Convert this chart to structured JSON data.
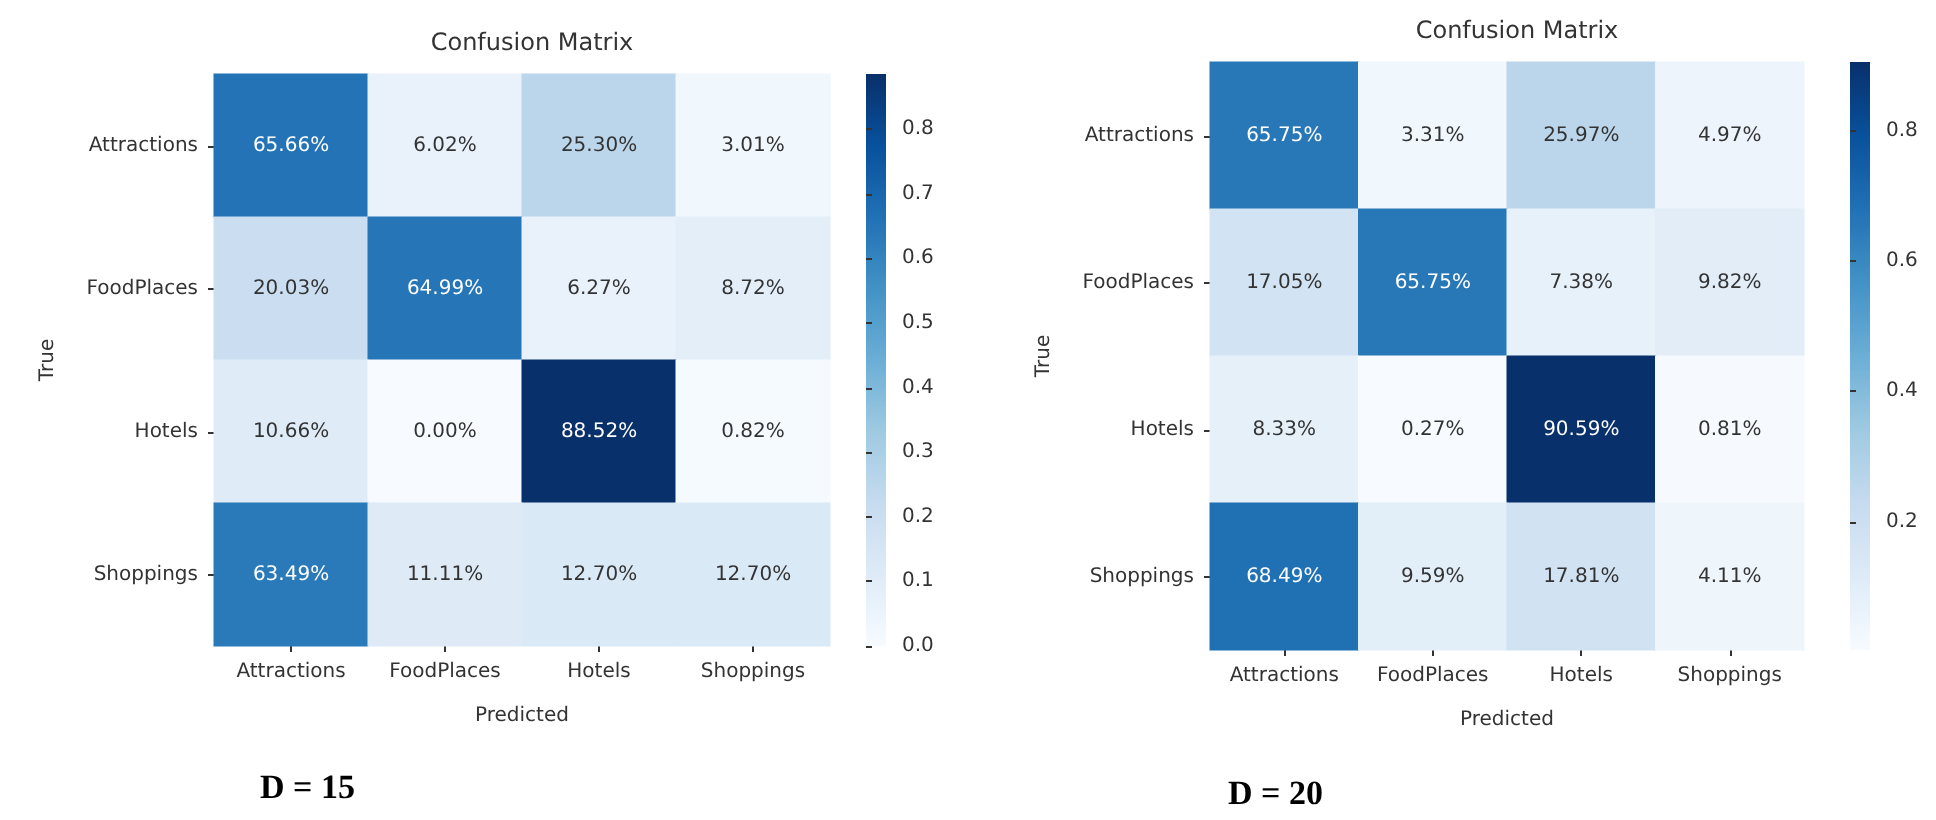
{
  "chart_data": [
    {
      "type": "heatmap",
      "title": "Confusion Matrix",
      "xlabel": "Predicted",
      "ylabel": "True",
      "categories": [
        "Attractions",
        "FoodPlaces",
        "Hotels",
        "Shoppings"
      ],
      "y_categories": [
        "Attractions",
        "FoodPlaces",
        "Hotels",
        "Shoppings"
      ],
      "cells": [
        [
          0.6566,
          0.0602,
          0.253,
          0.0301
        ],
        [
          0.2003,
          0.6499,
          0.0627,
          0.0872
        ],
        [
          0.1066,
          0.0,
          0.8852,
          0.0082
        ],
        [
          0.6349,
          0.1111,
          0.127,
          0.127
        ]
      ],
      "cell_labels": [
        [
          "65.66%",
          "6.02%",
          "25.30%",
          "3.01%"
        ],
        [
          "20.03%",
          "64.99%",
          "6.27%",
          "8.72%"
        ],
        [
          "10.66%",
          "0.00%",
          "88.52%",
          "0.82%"
        ],
        [
          "63.49%",
          "11.11%",
          "12.70%",
          "12.70%"
        ]
      ],
      "clim": [
        0,
        0.8852
      ],
      "cticks": [
        {
          "value": 0,
          "label": "0.0"
        },
        0.1,
        0.2,
        0.3,
        0.4,
        0.5,
        0.6,
        0.7,
        0.8
      ],
      "annotations": [
        "D = 15"
      ]
    },
    {
      "type": "heatmap",
      "title": "Confusion Matrix",
      "xlabel": "Predicted",
      "ylabel": "True",
      "categories": [
        "Attractions",
        "FoodPlaces",
        "Hotels",
        "Shoppings"
      ],
      "y_categories": [
        "Attractions",
        "FoodPlaces",
        "Hotels",
        "Shoppings"
      ],
      "cells": [
        [
          0.6575,
          0.0331,
          0.2597,
          0.0497
        ],
        [
          0.1705,
          0.6575,
          0.0738,
          0.0982
        ],
        [
          0.0833,
          0.0027,
          0.9059,
          0.0081
        ],
        [
          0.6849,
          0.0959,
          0.1781,
          0.0411
        ]
      ],
      "cell_labels": [
        [
          "65.75%",
          "3.31%",
          "25.97%",
          "4.97%"
        ],
        [
          "17.05%",
          "65.75%",
          "7.38%",
          "9.82%"
        ],
        [
          "8.33%",
          "0.27%",
          "90.59%",
          "0.81%"
        ],
        [
          "68.49%",
          "9.59%",
          "17.81%",
          "4.11%"
        ]
      ],
      "clim": [
        0.0027,
        0.9059
      ],
      "cticks": [
        0.2,
        0.4,
        0.6,
        0.8
      ],
      "annotations": [
        "D = 20"
      ]
    }
  ]
}
